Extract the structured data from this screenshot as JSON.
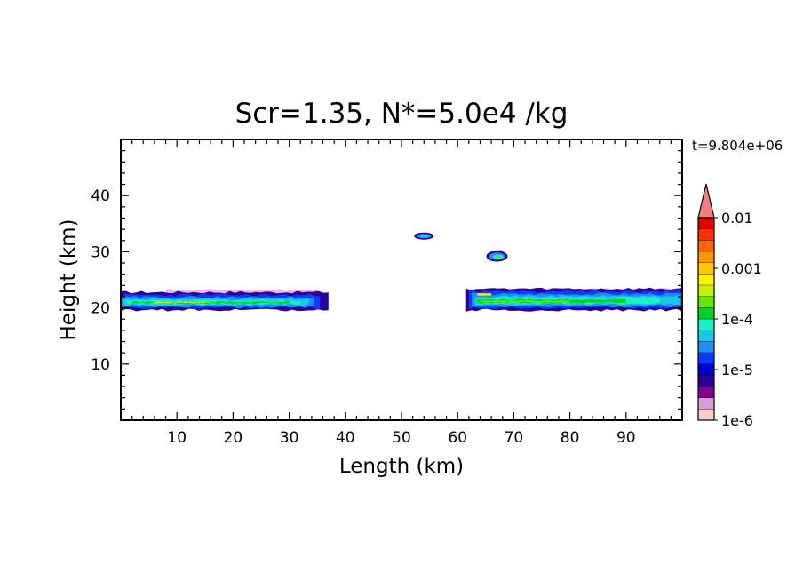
{
  "chart_data": {
    "type": "contour",
    "title": "Scr=1.35, N*=5.0e4 /kg",
    "time_label": "t=9.804e+06",
    "xlabel": "Length  (km)",
    "ylabel": "Height  (km)",
    "xlim": [
      0,
      100
    ],
    "ylim": [
      0,
      50
    ],
    "x_ticks": [
      10,
      20,
      30,
      40,
      50,
      60,
      70,
      80,
      90
    ],
    "y_ticks": [
      10,
      20,
      30,
      40
    ],
    "grid": false,
    "colorbar": {
      "placement": "right",
      "tick_labels": [
        "1e-6",
        "1e-5",
        "1e-4",
        "0.001",
        "0.01"
      ],
      "colors": [
        "#f6cccc",
        "#d89cd8",
        "#800090",
        "#2a0096",
        "#0000cd",
        "#0a3cff",
        "#1e8cff",
        "#18c8e6",
        "#18f0c8",
        "#00d428",
        "#64e600",
        "#c8f000",
        "#fff000",
        "#ffc800",
        "#ff9600",
        "#ff6400",
        "#ff3000",
        "#e60000"
      ],
      "extend_color": "#f08080"
    },
    "features": [
      {
        "name": "left-cloud-layer",
        "x_range": [
          0,
          37
        ],
        "z_range": [
          19.5,
          23.5
        ]
      },
      {
        "name": "cloud-patch-upper",
        "x_range": [
          52.5,
          55.5
        ],
        "z_range": [
          32.4,
          33.2
        ]
      },
      {
        "name": "cloud-patch-mid",
        "x_range": [
          65,
          69
        ],
        "z_range": [
          28.2,
          30.4
        ]
      },
      {
        "name": "right-cloud-layer",
        "x_range": [
          61.5,
          100
        ],
        "z_range": [
          19.5,
          23.5
        ]
      }
    ]
  }
}
